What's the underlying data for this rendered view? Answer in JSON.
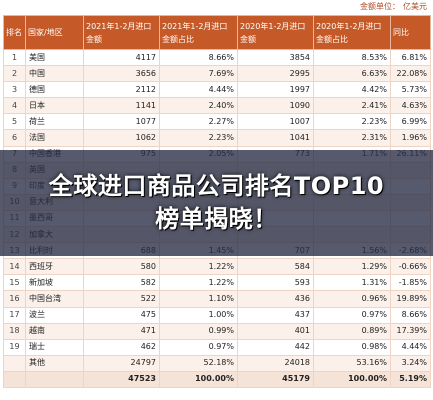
{
  "unit_label": "金额单位：",
  "unit_value": "亿美元",
  "headers": [
    "排名",
    "国家/地区",
    "2021年1-2月进口金额",
    "2021年1-2月进口金额占比",
    "2020年1-2月进口金额",
    "2020年1-2月进口金额占比",
    "同比"
  ],
  "rows": [
    [
      "1",
      "美国",
      "4117",
      "8.66%",
      "3854",
      "8.53%",
      "6.81%"
    ],
    [
      "2",
      "中国",
      "3656",
      "7.69%",
      "2995",
      "6.63%",
      "22.08%"
    ],
    [
      "3",
      "德国",
      "2112",
      "4.44%",
      "1997",
      "4.42%",
      "5.73%"
    ],
    [
      "4",
      "日本",
      "1141",
      "2.40%",
      "1090",
      "2.41%",
      "4.63%"
    ],
    [
      "5",
      "荷兰",
      "1077",
      "2.27%",
      "1007",
      "2.23%",
      "6.99%"
    ],
    [
      "6",
      "法国",
      "1062",
      "2.23%",
      "1041",
      "2.31%",
      "1.96%"
    ],
    [
      "7",
      "中国香港",
      "975",
      "2.05%",
      "773",
      "1.71%",
      "26.11%"
    ],
    [
      "8",
      "英国",
      "",
      "",
      "",
      "",
      ""
    ],
    [
      "9",
      "印度",
      "",
      "",
      "",
      "",
      ""
    ],
    [
      "10",
      "意大利",
      "",
      "",
      "",
      "",
      ""
    ],
    [
      "11",
      "墨西哥",
      "",
      "",
      "",
      "",
      ""
    ],
    [
      "12",
      "加拿大",
      "",
      "",
      "",
      "",
      ""
    ],
    [
      "13",
      "比利时",
      "688",
      "1.45%",
      "707",
      "1.56%",
      "-2.68%"
    ],
    [
      "14",
      "西班牙",
      "580",
      "1.22%",
      "584",
      "1.29%",
      "-0.66%"
    ],
    [
      "15",
      "新加坡",
      "582",
      "1.22%",
      "593",
      "1.31%",
      "-1.85%"
    ],
    [
      "16",
      "中国台湾",
      "522",
      "1.10%",
      "436",
      "0.96%",
      "19.89%"
    ],
    [
      "17",
      "波兰",
      "475",
      "1.00%",
      "437",
      "0.97%",
      "8.66%"
    ],
    [
      "18",
      "越南",
      "471",
      "0.99%",
      "401",
      "0.89%",
      "17.39%"
    ],
    [
      "19",
      "瑞士",
      "462",
      "0.97%",
      "442",
      "0.98%",
      "4.44%"
    ]
  ],
  "other_row": [
    "",
    "其他",
    "24797",
    "52.18%",
    "24018",
    "53.16%",
    "3.24%"
  ],
  "total_row": [
    "",
    "",
    "47523",
    "100.00%",
    "45179",
    "100.00%",
    "5.19%"
  ],
  "banner_title": "全球进口商品公司排名TOP10榜单揭晓！",
  "colors": {
    "header_bg": "#c55a28",
    "banner_bg": "#262c42",
    "unit_text": "#b04a24"
  }
}
